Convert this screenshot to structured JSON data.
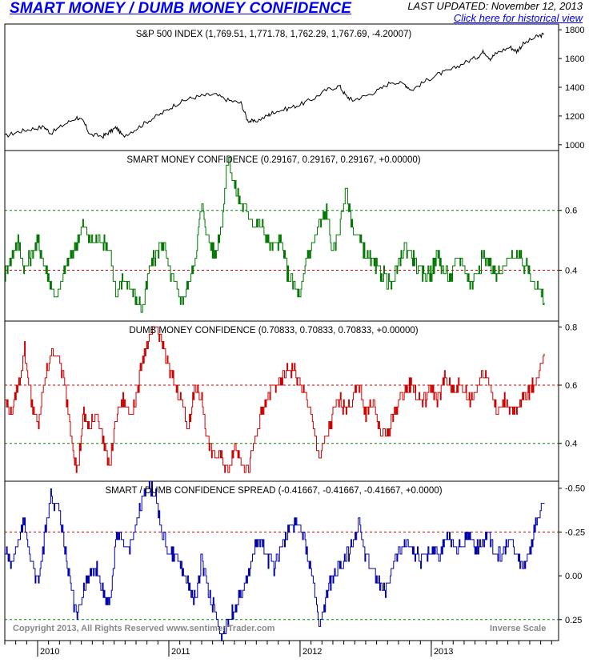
{
  "header": {
    "title": "SMART MONEY / DUMB MONEY CONFIDENCE",
    "last_updated": "LAST UPDATED:  November 12, 2013",
    "history_link": "Click here for historical view"
  },
  "colors": {
    "spx": "#000000",
    "smart": "#007700",
    "dumb": "#cc0000",
    "spread": "#0000aa",
    "ref_red": "#cc0000",
    "ref_green": "#008800",
    "link": "#0000ee"
  },
  "footer": {
    "copyright": "Copyright 2013, All Rights Reserved  www.sentimenTrader.com",
    "inverse": "Inverse Scale"
  },
  "chart_data": [
    {
      "type": "line",
      "panel": "sp500",
      "title": "S&P 500 INDEX (1,769.51, 1,771.78, 1,762.29, 1,767.69, -4.20007)",
      "ylim": [
        960,
        1840
      ],
      "yticks": [
        1000,
        1200,
        1400,
        1600,
        1800
      ],
      "ytick_labels": [
        "1000",
        "1200",
        "1400",
        "1600",
        "1800"
      ],
      "x": [
        2009.75,
        2009.85,
        2009.95,
        2010.05,
        2010.1,
        2010.2,
        2010.3,
        2010.35,
        2010.4,
        2010.5,
        2010.55,
        2010.6,
        2010.65,
        2010.75,
        2010.85,
        2010.95,
        2011.05,
        2011.15,
        2011.25,
        2011.35,
        2011.45,
        2011.55,
        2011.6,
        2011.65,
        2011.75,
        2011.8,
        2011.9,
        2012.0,
        2012.1,
        2012.2,
        2012.3,
        2012.35,
        2012.4,
        2012.5,
        2012.6,
        2012.7,
        2012.8,
        2012.85,
        2012.95,
        2013.05,
        2013.15,
        2013.25,
        2013.35,
        2013.4,
        2013.45,
        2013.5,
        2013.6,
        2013.65,
        2013.7,
        2013.8,
        2013.86
      ],
      "values": [
        1060,
        1090,
        1110,
        1125,
        1080,
        1140,
        1190,
        1160,
        1070,
        1060,
        1090,
        1120,
        1060,
        1110,
        1170,
        1220,
        1280,
        1320,
        1340,
        1350,
        1310,
        1290,
        1170,
        1160,
        1200,
        1230,
        1250,
        1280,
        1320,
        1380,
        1410,
        1340,
        1310,
        1340,
        1380,
        1440,
        1420,
        1380,
        1440,
        1490,
        1520,
        1570,
        1610,
        1650,
        1600,
        1640,
        1680,
        1650,
        1700,
        1750,
        1768
      ],
      "xrange": [
        2009.75,
        2013.97
      ]
    },
    {
      "type": "line",
      "panel": "smart",
      "title": "SMART MONEY CONFIDENCE (0.29167, 0.29167, 0.29167, +0.00000)",
      "ylim": [
        0.23,
        0.8
      ],
      "yticks": [
        0.4,
        0.6
      ],
      "ytick_labels": [
        "0.4",
        "0.6"
      ],
      "ref_lines": [
        {
          "value": 0.6,
          "color": "green"
        },
        {
          "value": 0.4,
          "color": "red"
        }
      ],
      "x": [
        2009.75,
        2009.8,
        2009.85,
        2009.9,
        2009.95,
        2010.0,
        2010.05,
        2010.1,
        2010.15,
        2010.2,
        2010.25,
        2010.3,
        2010.35,
        2010.4,
        2010.45,
        2010.5,
        2010.55,
        2010.6,
        2010.65,
        2010.7,
        2010.75,
        2010.8,
        2010.85,
        2010.9,
        2010.95,
        2011.0,
        2011.05,
        2011.1,
        2011.15,
        2011.2,
        2011.25,
        2011.3,
        2011.35,
        2011.4,
        2011.45,
        2011.5,
        2011.55,
        2011.6,
        2011.65,
        2011.7,
        2011.75,
        2011.8,
        2011.85,
        2011.9,
        2011.95,
        2012.0,
        2012.05,
        2012.1,
        2012.15,
        2012.2,
        2012.25,
        2012.3,
        2012.35,
        2012.4,
        2012.45,
        2012.5,
        2012.55,
        2012.6,
        2012.65,
        2012.7,
        2012.75,
        2012.8,
        2012.85,
        2012.9,
        2012.95,
        2013.0,
        2013.05,
        2013.1,
        2013.15,
        2013.2,
        2013.25,
        2013.3,
        2013.35,
        2013.4,
        2013.45,
        2013.5,
        2013.55,
        2013.6,
        2013.65,
        2013.7,
        2013.75,
        2013.8,
        2013.86
      ],
      "values": [
        0.38,
        0.45,
        0.5,
        0.4,
        0.45,
        0.5,
        0.42,
        0.35,
        0.3,
        0.4,
        0.45,
        0.5,
        0.55,
        0.5,
        0.5,
        0.5,
        0.47,
        0.3,
        0.38,
        0.35,
        0.3,
        0.27,
        0.4,
        0.45,
        0.5,
        0.4,
        0.35,
        0.3,
        0.35,
        0.45,
        0.62,
        0.5,
        0.45,
        0.55,
        0.78,
        0.68,
        0.62,
        0.6,
        0.55,
        0.55,
        0.5,
        0.48,
        0.5,
        0.4,
        0.35,
        0.3,
        0.45,
        0.5,
        0.55,
        0.6,
        0.45,
        0.55,
        0.67,
        0.55,
        0.5,
        0.45,
        0.42,
        0.4,
        0.38,
        0.35,
        0.42,
        0.48,
        0.45,
        0.4,
        0.38,
        0.4,
        0.45,
        0.4,
        0.38,
        0.45,
        0.42,
        0.35,
        0.4,
        0.45,
        0.42,
        0.38,
        0.4,
        0.45,
        0.45,
        0.42,
        0.4,
        0.35,
        0.29167
      ]
    },
    {
      "type": "line",
      "panel": "dumb",
      "title": "DUMB MONEY CONFIDENCE (0.70833, 0.70833, 0.70833, +0.00000)",
      "ylim": [
        0.27,
        0.82
      ],
      "yticks": [
        0.4,
        0.6,
        0.8
      ],
      "ytick_labels": [
        "0.4",
        "0.6",
        "0.8"
      ],
      "ref_lines": [
        {
          "value": 0.6,
          "color": "red"
        },
        {
          "value": 0.4,
          "color": "green"
        }
      ],
      "x": [
        2009.75,
        2009.8,
        2009.85,
        2009.9,
        2009.95,
        2010.0,
        2010.05,
        2010.1,
        2010.15,
        2010.2,
        2010.25,
        2010.3,
        2010.35,
        2010.4,
        2010.45,
        2010.5,
        2010.55,
        2010.6,
        2010.65,
        2010.7,
        2010.75,
        2010.8,
        2010.85,
        2010.9,
        2010.95,
        2011.0,
        2011.05,
        2011.1,
        2011.15,
        2011.2,
        2011.25,
        2011.3,
        2011.35,
        2011.4,
        2011.45,
        2011.5,
        2011.55,
        2011.6,
        2011.65,
        2011.7,
        2011.75,
        2011.8,
        2011.85,
        2011.9,
        2011.95,
        2012.0,
        2012.05,
        2012.1,
        2012.15,
        2012.2,
        2012.25,
        2012.3,
        2012.35,
        2012.4,
        2012.45,
        2012.5,
        2012.55,
        2012.6,
        2012.65,
        2012.7,
        2012.75,
        2012.8,
        2012.85,
        2012.9,
        2012.95,
        2013.0,
        2013.05,
        2013.1,
        2013.15,
        2013.2,
        2013.25,
        2013.3,
        2013.35,
        2013.4,
        2013.45,
        2013.5,
        2013.55,
        2013.6,
        2013.65,
        2013.7,
        2013.75,
        2013.8,
        2013.86
      ],
      "values": [
        0.55,
        0.5,
        0.6,
        0.72,
        0.55,
        0.45,
        0.6,
        0.72,
        0.7,
        0.62,
        0.45,
        0.3,
        0.5,
        0.45,
        0.52,
        0.4,
        0.32,
        0.5,
        0.55,
        0.5,
        0.55,
        0.7,
        0.75,
        0.8,
        0.75,
        0.65,
        0.6,
        0.55,
        0.45,
        0.6,
        0.55,
        0.4,
        0.35,
        0.35,
        0.3,
        0.4,
        0.35,
        0.3,
        0.4,
        0.5,
        0.55,
        0.6,
        0.6,
        0.65,
        0.65,
        0.6,
        0.55,
        0.45,
        0.35,
        0.42,
        0.5,
        0.55,
        0.52,
        0.55,
        0.6,
        0.5,
        0.55,
        0.45,
        0.42,
        0.48,
        0.55,
        0.58,
        0.6,
        0.55,
        0.55,
        0.6,
        0.55,
        0.62,
        0.6,
        0.6,
        0.58,
        0.55,
        0.6,
        0.65,
        0.6,
        0.5,
        0.55,
        0.52,
        0.5,
        0.55,
        0.58,
        0.62,
        0.70833
      ]
    },
    {
      "type": "line",
      "panel": "spread",
      "title": "SMART / DUMB CONFIDENCE SPREAD (-0.41667, -0.41667, -0.41667, +0.0000)",
      "ylim": [
        0.37,
        -0.54
      ],
      "yticks": [
        -0.5,
        -0.25,
        0.0,
        0.25
      ],
      "ytick_labels": [
        "-0.50",
        "-0.25",
        "0.00",
        "0.25"
      ],
      "ref_lines": [
        {
          "value": -0.25,
          "color": "red"
        },
        {
          "value": 0.25,
          "color": "green"
        }
      ],
      "x": [
        2009.75,
        2009.8,
        2009.85,
        2009.9,
        2009.95,
        2010.0,
        2010.05,
        2010.1,
        2010.15,
        2010.2,
        2010.25,
        2010.3,
        2010.35,
        2010.4,
        2010.45,
        2010.5,
        2010.55,
        2010.6,
        2010.65,
        2010.7,
        2010.75,
        2010.8,
        2010.85,
        2010.9,
        2010.95,
        2011.0,
        2011.05,
        2011.1,
        2011.15,
        2011.2,
        2011.25,
        2011.3,
        2011.35,
        2011.4,
        2011.45,
        2011.5,
        2011.55,
        2011.6,
        2011.65,
        2011.7,
        2011.75,
        2011.8,
        2011.85,
        2011.9,
        2011.95,
        2012.0,
        2012.05,
        2012.1,
        2012.15,
        2012.2,
        2012.25,
        2012.3,
        2012.35,
        2012.4,
        2012.45,
        2012.5,
        2012.55,
        2012.6,
        2012.65,
        2012.7,
        2012.75,
        2012.8,
        2012.85,
        2012.9,
        2012.95,
        2013.0,
        2013.05,
        2013.1,
        2013.15,
        2013.2,
        2013.25,
        2013.3,
        2013.35,
        2013.4,
        2013.45,
        2013.5,
        2013.55,
        2013.6,
        2013.65,
        2013.7,
        2013.75,
        2013.8,
        2013.86
      ],
      "values": [
        -0.15,
        -0.05,
        -0.2,
        -0.3,
        -0.1,
        0.05,
        -0.2,
        -0.45,
        -0.4,
        -0.2,
        0.05,
        0.25,
        0.05,
        0.0,
        -0.05,
        0.1,
        0.15,
        -0.25,
        -0.2,
        -0.15,
        -0.3,
        -0.45,
        -0.5,
        -0.45,
        -0.25,
        -0.15,
        -0.1,
        -0.05,
        0.05,
        0.15,
        -0.1,
        0.1,
        0.2,
        0.35,
        0.25,
        0.2,
        0.1,
        0.0,
        -0.15,
        -0.2,
        -0.1,
        -0.05,
        -0.15,
        -0.25,
        -0.3,
        -0.3,
        -0.15,
        0.0,
        0.3,
        0.1,
        0.0,
        -0.05,
        -0.1,
        -0.2,
        -0.3,
        -0.1,
        -0.05,
        0.05,
        0.1,
        -0.05,
        -0.15,
        -0.2,
        -0.15,
        -0.1,
        -0.1,
        -0.15,
        -0.1,
        -0.2,
        -0.2,
        -0.15,
        -0.2,
        -0.2,
        -0.15,
        -0.2,
        -0.2,
        -0.1,
        -0.15,
        -0.2,
        -0.1,
        -0.05,
        -0.15,
        -0.3,
        -0.41667
      ]
    }
  ],
  "xaxis": {
    "range": [
      2009.75,
      2013.97
    ],
    "years": [
      2010,
      2011,
      2012,
      2013
    ],
    "labels": [
      "2010",
      "2011",
      "2012",
      "2013"
    ]
  }
}
